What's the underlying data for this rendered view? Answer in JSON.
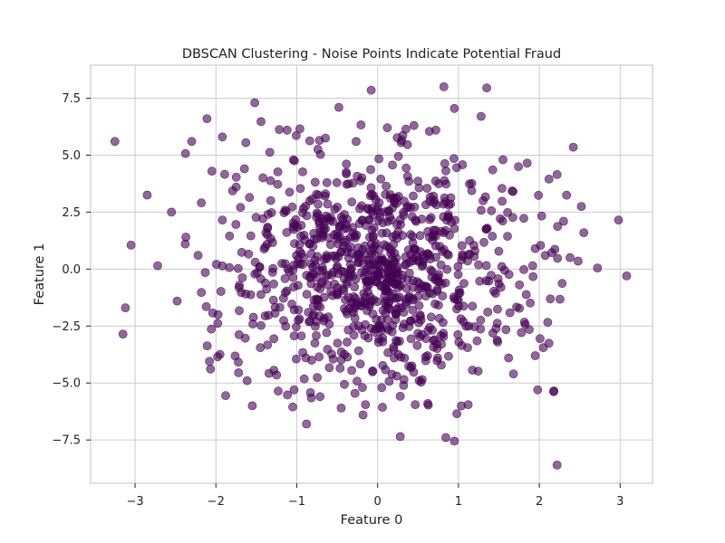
{
  "chart_data": {
    "type": "scatter",
    "title": "DBSCAN Clustering - Noise Points Indicate Potential Fraud",
    "xlabel": "Feature 0",
    "ylabel": "Feature 1",
    "xlim": [
      -3.55,
      3.4
    ],
    "ylim": [
      -9.4,
      8.95
    ],
    "xticks": [
      -3,
      -2,
      -1,
      0,
      1,
      2,
      3
    ],
    "yticks": [
      -7.5,
      -5.0,
      -2.5,
      0.0,
      2.5,
      5.0,
      7.5
    ],
    "xtick_labels": [
      "−3",
      "−2",
      "−1",
      "0",
      "1",
      "2",
      "3"
    ],
    "ytick_labels": [
      "−7.5",
      "−5.0",
      "−2.5",
      "0.0",
      "2.5",
      "5.0",
      "7.5"
    ],
    "grid": true,
    "legend": "none",
    "marker_color": "#440154",
    "marker_alpha": 0.6,
    "series": [
      {
        "point_count": 1000,
        "points": [
          [
            -3.25,
            5.6
          ],
          [
            -3.12,
            -1.7
          ],
          [
            -3.05,
            1.05
          ],
          [
            -3.15,
            -2.85
          ],
          [
            -2.85,
            3.25
          ],
          [
            -2.72,
            0.15
          ],
          [
            -2.55,
            2.5
          ],
          [
            -2.48,
            -1.4
          ],
          [
            -2.38,
            1.1
          ],
          [
            -2.3,
            5.6
          ],
          [
            -2.22,
            0.6
          ],
          [
            -2.12,
            -1.65
          ],
          [
            -2.05,
            4.3
          ],
          [
            -2.08,
            -4.05
          ],
          [
            -1.98,
            -3.85
          ],
          [
            -1.92,
            5.8
          ],
          [
            -1.88,
            -5.55
          ],
          [
            -1.75,
            3.6
          ],
          [
            -1.72,
            -4.55
          ],
          [
            -1.63,
            5.55
          ],
          [
            -1.55,
            -6.0
          ],
          [
            -1.52,
            7.3
          ],
          [
            -1.45,
            -3.45
          ],
          [
            -1.25,
            -4.65
          ],
          [
            -1.12,
            6.1
          ],
          [
            -1.05,
            -6.05
          ],
          [
            -0.88,
            -6.8
          ],
          [
            -0.82,
            -5.65
          ],
          [
            -0.72,
            5.65
          ],
          [
            -0.55,
            -3.95
          ],
          [
            -0.48,
            7.1
          ],
          [
            -0.45,
            -6.1
          ],
          [
            -0.28,
            -5.45
          ],
          [
            -0.18,
            -6.4
          ],
          [
            -0.15,
            -5.95
          ],
          [
            -0.08,
            7.85
          ],
          [
            0.05,
            -5.2
          ],
          [
            0.12,
            6.2
          ],
          [
            0.28,
            -7.35
          ],
          [
            0.45,
            6.3
          ],
          [
            0.55,
            -4.85
          ],
          [
            0.62,
            -5.9
          ],
          [
            0.72,
            6.1
          ],
          [
            0.82,
            8.0
          ],
          [
            0.95,
            7.05
          ],
          [
            0.95,
            -7.55
          ],
          [
            0.98,
            -6.35
          ],
          [
            1.12,
            -5.95
          ],
          [
            1.28,
            6.7
          ],
          [
            1.35,
            7.95
          ],
          [
            1.55,
            4.8
          ],
          [
            1.62,
            -3.9
          ],
          [
            1.68,
            -4.6
          ],
          [
            1.85,
            4.65
          ],
          [
            1.95,
            -3.8
          ],
          [
            1.98,
            -5.3
          ],
          [
            2.05,
            -3.45
          ],
          [
            2.12,
            3.95
          ],
          [
            2.22,
            4.15
          ],
          [
            2.18,
            -5.35
          ],
          [
            2.22,
            -8.6
          ],
          [
            2.3,
            2.1
          ],
          [
            2.38,
            0.5
          ],
          [
            2.42,
            5.35
          ],
          [
            2.48,
            0.35
          ],
          [
            2.52,
            2.75
          ],
          [
            2.55,
            1.6
          ],
          [
            2.72,
            0.05
          ],
          [
            2.98,
            2.15
          ],
          [
            3.08,
            -0.3
          ]
        ]
      }
    ]
  }
}
